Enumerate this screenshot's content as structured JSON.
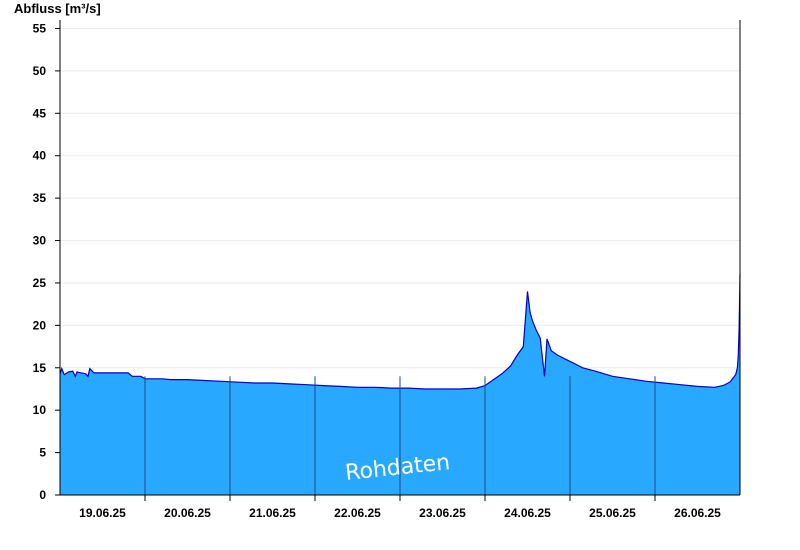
{
  "chart_data": {
    "type": "area",
    "ylabel": "Abfluss [m³/s]",
    "xlabel": "",
    "title": "",
    "watermark": "Rohdaten",
    "ylim": [
      0,
      56
    ],
    "yticks": [
      0,
      5,
      10,
      15,
      20,
      25,
      30,
      35,
      40,
      45,
      50,
      55
    ],
    "xlim_days": [
      18.5,
      26.5
    ],
    "xtick_labels": [
      "19.06.25",
      "20.06.25",
      "21.06.25",
      "22.06.25",
      "23.06.25",
      "24.06.25",
      "25.06.25",
      "26.06.25"
    ],
    "grid": true,
    "colors": {
      "fill": "#29a8ff",
      "line": "#0000cc",
      "grid": "#ebebeb",
      "axis": "#000000"
    },
    "series": [
      {
        "x_unit": "day of June 2025 (fractional)",
        "points": [
          [
            18.5,
            14.3
          ],
          [
            18.52,
            14.9
          ],
          [
            18.55,
            14.2
          ],
          [
            18.6,
            14.5
          ],
          [
            18.65,
            14.6
          ],
          [
            18.68,
            14.0
          ],
          [
            18.7,
            14.5
          ],
          [
            18.75,
            14.4
          ],
          [
            18.8,
            14.3
          ],
          [
            18.83,
            14.0
          ],
          [
            18.85,
            14.9
          ],
          [
            18.9,
            14.4
          ],
          [
            19.0,
            14.4
          ],
          [
            19.2,
            14.4
          ],
          [
            19.3,
            14.4
          ],
          [
            19.35,
            14.0
          ],
          [
            19.45,
            14.0
          ],
          [
            19.5,
            13.7
          ],
          [
            19.7,
            13.7
          ],
          [
            19.8,
            13.6
          ],
          [
            20.0,
            13.6
          ],
          [
            20.2,
            13.5
          ],
          [
            20.4,
            13.4
          ],
          [
            20.6,
            13.3
          ],
          [
            20.8,
            13.2
          ],
          [
            21.0,
            13.2
          ],
          [
            21.2,
            13.1
          ],
          [
            21.4,
            13.0
          ],
          [
            21.6,
            12.9
          ],
          [
            21.8,
            12.8
          ],
          [
            22.0,
            12.7
          ],
          [
            22.2,
            12.7
          ],
          [
            22.4,
            12.6
          ],
          [
            22.6,
            12.6
          ],
          [
            22.8,
            12.5
          ],
          [
            23.0,
            12.5
          ],
          [
            23.2,
            12.5
          ],
          [
            23.4,
            12.6
          ],
          [
            23.5,
            12.9
          ],
          [
            23.6,
            13.6
          ],
          [
            23.7,
            14.3
          ],
          [
            23.8,
            15.2
          ],
          [
            23.88,
            16.5
          ],
          [
            23.95,
            17.5
          ],
          [
            24.0,
            24.0
          ],
          [
            24.03,
            21.5
          ],
          [
            24.06,
            20.5
          ],
          [
            24.1,
            19.5
          ],
          [
            24.15,
            18.5
          ],
          [
            24.2,
            14.0
          ],
          [
            24.23,
            18.4
          ],
          [
            24.28,
            17.0
          ],
          [
            24.35,
            16.5
          ],
          [
            24.45,
            16.0
          ],
          [
            24.55,
            15.5
          ],
          [
            24.65,
            15.0
          ],
          [
            24.8,
            14.6
          ],
          [
            25.0,
            14.0
          ],
          [
            25.2,
            13.7
          ],
          [
            25.4,
            13.4
          ],
          [
            25.6,
            13.2
          ],
          [
            25.8,
            13.0
          ],
          [
            26.0,
            12.8
          ],
          [
            26.2,
            12.7
          ],
          [
            26.3,
            12.9
          ],
          [
            26.38,
            13.3
          ],
          [
            26.42,
            13.8
          ],
          [
            26.45,
            14.2
          ],
          [
            26.47,
            15.0
          ],
          [
            26.48,
            16.5
          ],
          [
            26.49,
            19.5
          ],
          [
            26.5,
            26.0
          ]
        ]
      }
    ]
  }
}
